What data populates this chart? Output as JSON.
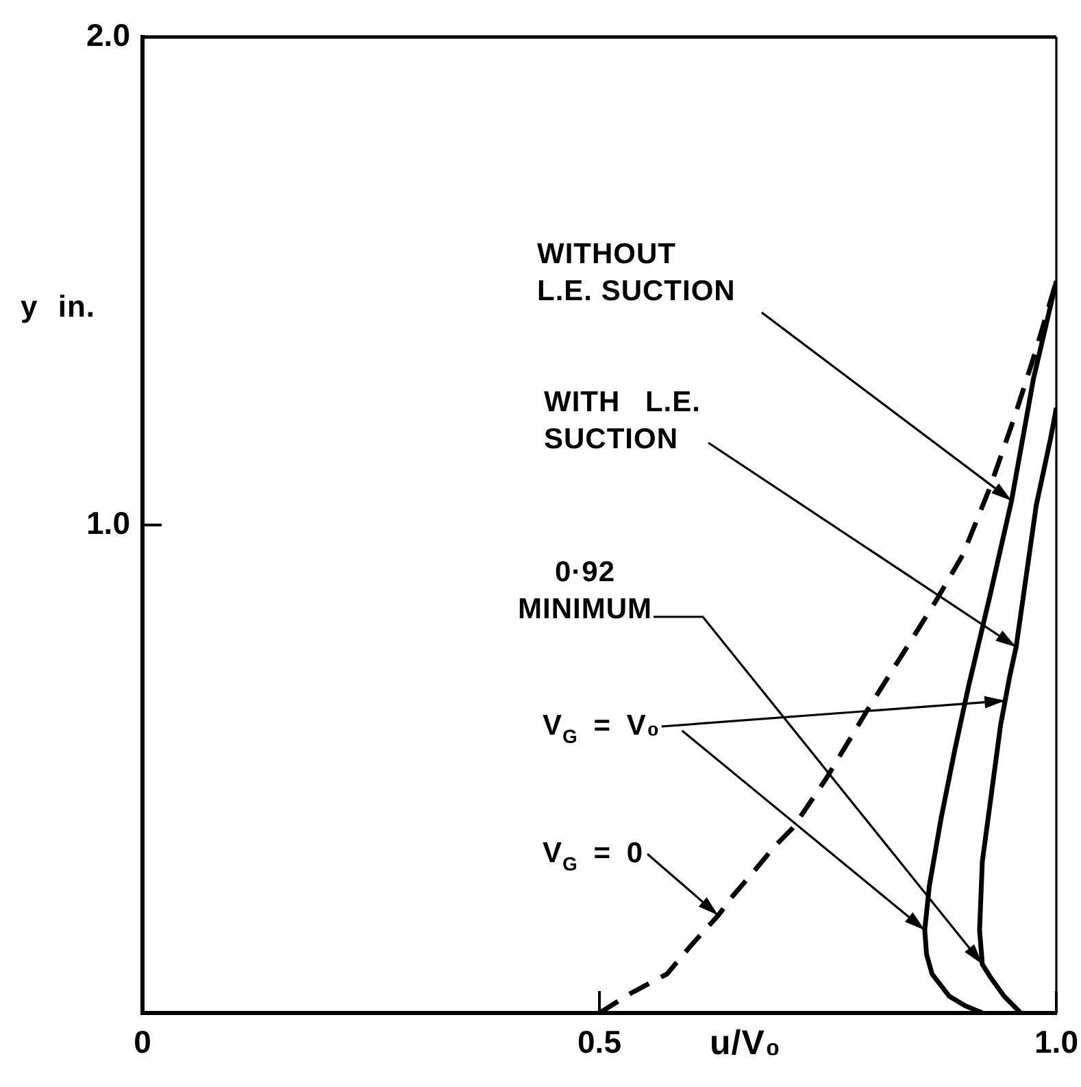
{
  "chart_data": {
    "type": "line",
    "xlabel": "u/V₀",
    "ylabel": "y in.",
    "xlim": [
      0,
      1
    ],
    "xticks": [
      0,
      0.5,
      {
        "value": 1,
        "label": "1.0"
      }
    ],
    "ylim": [
      0,
      2
    ],
    "yticks": [
      {
        "value": 1,
        "label": "1.0"
      },
      {
        "value": 2,
        "label": "2.0"
      }
    ],
    "marker": "none",
    "series": [
      {
        "color": "#000000",
        "line_style": "dashed",
        "x": [
          0.5,
          0.534,
          0.574,
          0.601,
          0.63,
          0.646,
          0.669,
          0.691,
          0.712,
          0.748,
          0.793,
          0.84,
          0.87,
          0.898,
          0.928,
          0.954,
          0.978,
          1.0
        ],
        "values": [
          0,
          0.04,
          0.08,
          0.14,
          0.2,
          0.24,
          0.29,
          0.34,
          0.38,
          0.48,
          0.62,
          0.76,
          0.85,
          0.94,
          1.08,
          1.22,
          1.36,
          1.5
        ]
      },
      {
        "name": "WITHOUT\nL.E. SUCTION",
        "color": "#000000",
        "line_style": "solid",
        "x": [
          0.919,
          0.9,
          0.883,
          0.864,
          0.858,
          0.856,
          0.861,
          0.874,
          0.889,
          0.904,
          0.928,
          0.951,
          0.975,
          1.0
        ],
        "values": [
          0,
          0.015,
          0.034,
          0.08,
          0.12,
          0.17,
          0.26,
          0.4,
          0.54,
          0.67,
          0.86,
          1.05,
          1.3,
          1.5
        ]
      },
      {
        "name": "WITH L.E.\nSUCTION",
        "color": "#000000",
        "line_style": "solid",
        "x": [
          0.961,
          0.943,
          0.928,
          0.919,
          0.916,
          0.919,
          0.929,
          0.939,
          0.944,
          0.949,
          0.956,
          0.978,
          0.994,
          1.0
        ],
        "values": [
          0,
          0.034,
          0.073,
          0.1,
          0.17,
          0.31,
          0.45,
          0.59,
          0.64,
          0.69,
          0.75,
          1.04,
          1.18,
          1.24
        ]
      }
    ],
    "annotations": [
      {
        "text": "V$_{G}$ = V₀",
        "x": 0.944,
        "y": 0.64
      },
      {
        "text": "0·92\nMINIMUM",
        "x": 0.919,
        "y": 0.1
      },
      {
        "text": "V$_{G}$ = 0",
        "x": 0.63,
        "y": 0.2
      }
    ]
  }
}
